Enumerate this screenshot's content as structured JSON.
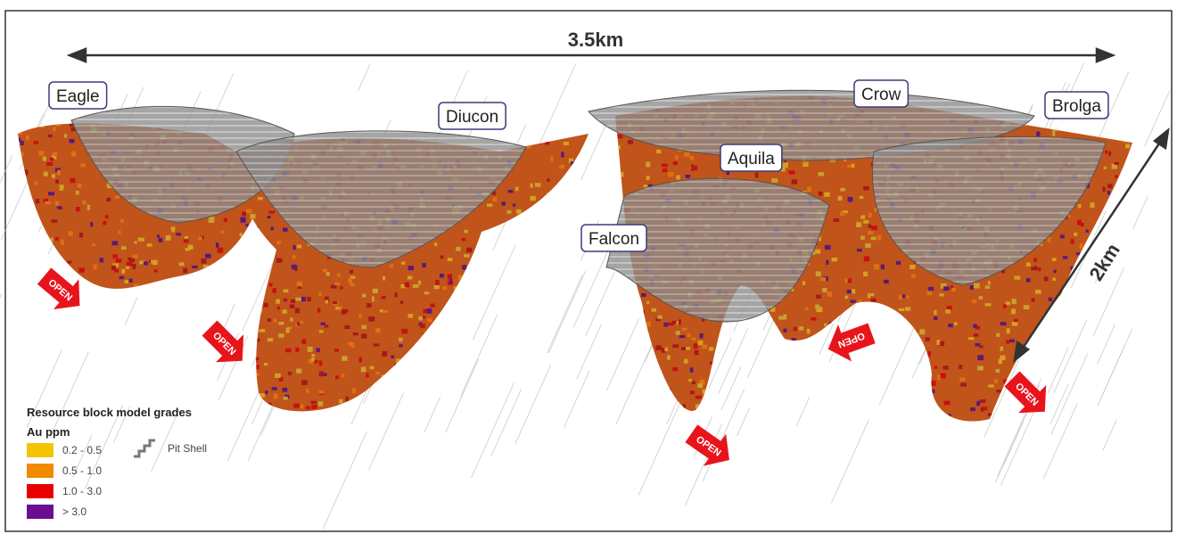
{
  "scale_bars": {
    "horizontal": "3.5km",
    "vertical": "2km"
  },
  "deposits": [
    {
      "label": "Eagle"
    },
    {
      "label": "Diucon"
    },
    {
      "label": "Crow"
    },
    {
      "label": "Brolga"
    },
    {
      "label": "Aquila"
    },
    {
      "label": "Falcon"
    }
  ],
  "open_arrows": [
    "OPEN",
    "OPEN",
    "OPEN",
    "OPEN",
    "OPEN"
  ],
  "legend": {
    "title": "Resource block model grades",
    "unit": "Au ppm",
    "items": [
      {
        "label": "0.2 - 0.5",
        "color": "#f5c400"
      },
      {
        "label": "0.5 - 1.0",
        "color": "#f28a00"
      },
      {
        "label": "1.0 - 3.0",
        "color": "#e80000"
      },
      {
        "label": "> 3.0",
        "color": "#6a0d91"
      }
    ],
    "pit_shell": "Pit Shell"
  }
}
